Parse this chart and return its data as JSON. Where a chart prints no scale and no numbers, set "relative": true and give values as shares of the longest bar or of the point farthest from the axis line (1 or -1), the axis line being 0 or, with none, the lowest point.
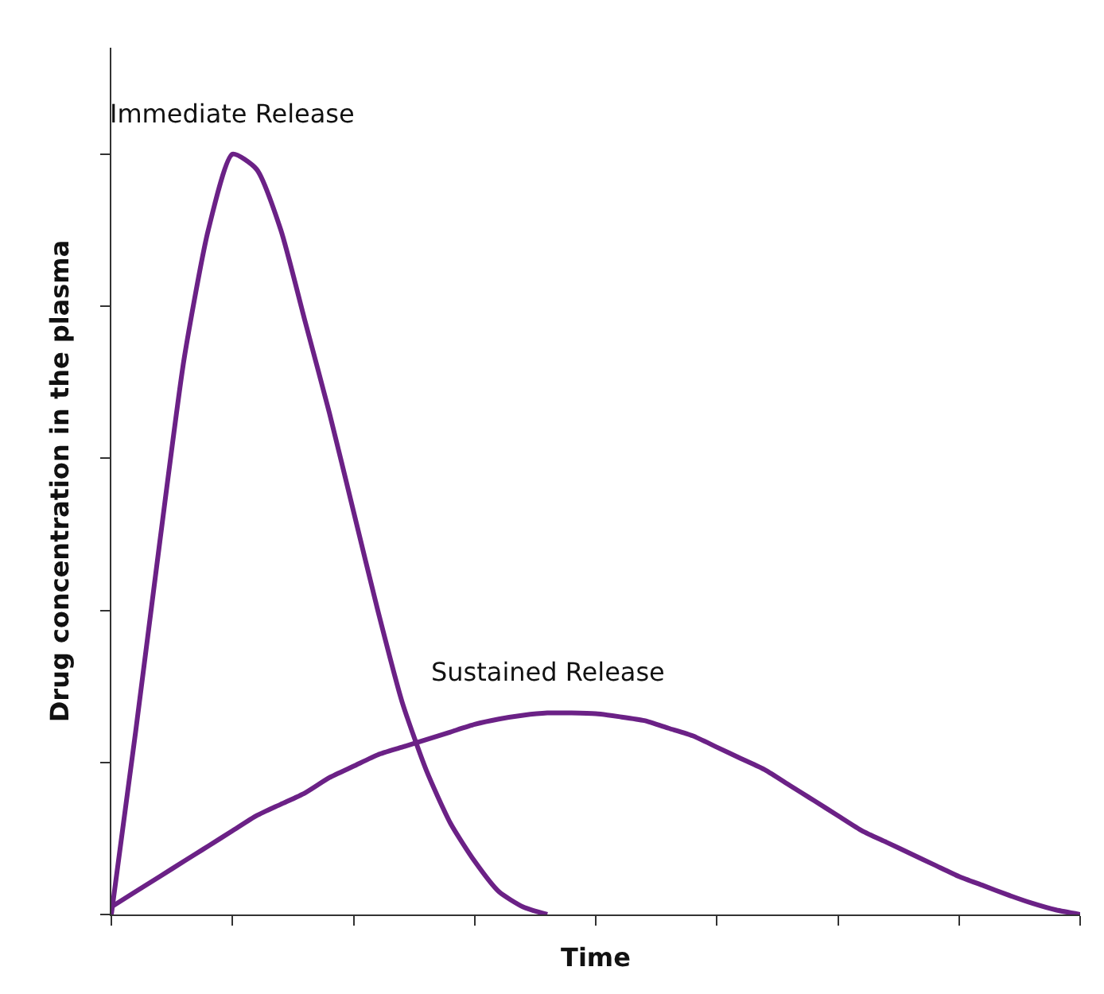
{
  "chart_data": {
    "type": "line",
    "relative": true,
    "xlabel": "Time",
    "ylabel": "Drug concentration in the plasma",
    "legend": false,
    "marker": "none",
    "line_style": "solid",
    "categories": [
      null,
      null,
      null,
      null,
      null,
      null,
      null,
      null,
      null,
      null,
      null,
      null,
      null,
      null,
      null,
      null,
      null,
      null,
      null,
      null,
      null,
      null,
      null,
      null,
      null,
      null,
      null,
      null,
      null,
      null,
      null,
      null,
      null,
      null,
      null,
      null,
      null,
      null,
      null,
      null,
      null
    ],
    "series": [
      {
        "name": "Immediate Release",
        "color": "#6b2186",
        "values": [
          0,
          0.24,
          0.49,
          0.73,
          0.9,
          1,
          0.98,
          0.9,
          0.78,
          0.66,
          0.53,
          0.4,
          0.28,
          0.19,
          0.12,
          0.07,
          0.03,
          0.01,
          0,
          null,
          null,
          null,
          null,
          null,
          null,
          null,
          null,
          null,
          null,
          null,
          null,
          null,
          null,
          null,
          null,
          null,
          null,
          null,
          null,
          null,
          null
        ]
      },
      {
        "name": "Sustained Release",
        "color": "#6b2186",
        "values": [
          0.01,
          0.03,
          0.05,
          0.07,
          0.09,
          0.11,
          0.13,
          0.145,
          0.16,
          0.18,
          0.195,
          0.21,
          0.22,
          0.23,
          0.24,
          0.25,
          0.257,
          0.262,
          0.265,
          0.265,
          0.264,
          0.26,
          0.255,
          0.245,
          0.235,
          0.22,
          0.205,
          0.19,
          0.17,
          0.15,
          0.13,
          0.11,
          0.095,
          0.08,
          0.065,
          0.05,
          0.038,
          0.026,
          0.015,
          0.006,
          0
        ]
      }
    ]
  }
}
